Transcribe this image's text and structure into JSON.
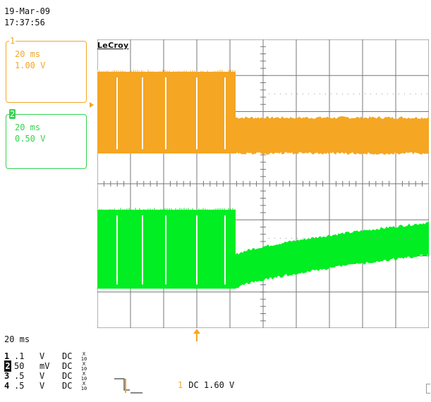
{
  "header": {
    "date": "19-Mar-09",
    "time": "17:37:56"
  },
  "scope": {
    "brand": "LeCroy",
    "channel1_tab": {
      "number": "1",
      "time_div": "20 ms",
      "volts_div": "1.00 V",
      "color": "#f5a623"
    },
    "channel2_tab": {
      "number": "2",
      "time_div": "20 ms",
      "volts_div": "0.50 V",
      "color": "#34d34f"
    },
    "timebase": "20 ms",
    "channels": [
      {
        "num": "1",
        "value": ".1",
        "unit": "V",
        "coupling": "DC",
        "probe_top": "X",
        "probe_bottom": "10"
      },
      {
        "num": "2",
        "value": "50",
        "unit": "mV",
        "coupling": "DC",
        "probe_top": "X",
        "probe_bottom": "10"
      },
      {
        "num": "3",
        "value": ".5",
        "unit": "V",
        "coupling": "DC",
        "probe_top": "X",
        "probe_bottom": "10"
      },
      {
        "num": "4",
        "value": ".5",
        "unit": "V",
        "coupling": "DC",
        "probe_top": "X",
        "probe_bottom": "10"
      }
    ],
    "trigger": {
      "channel": "1",
      "coupling": "DC",
      "level": "1.60 V"
    },
    "trace_colors": {
      "channel1": "#f5a623",
      "channel2": "#00ee22",
      "grid": "#666666"
    }
  }
}
